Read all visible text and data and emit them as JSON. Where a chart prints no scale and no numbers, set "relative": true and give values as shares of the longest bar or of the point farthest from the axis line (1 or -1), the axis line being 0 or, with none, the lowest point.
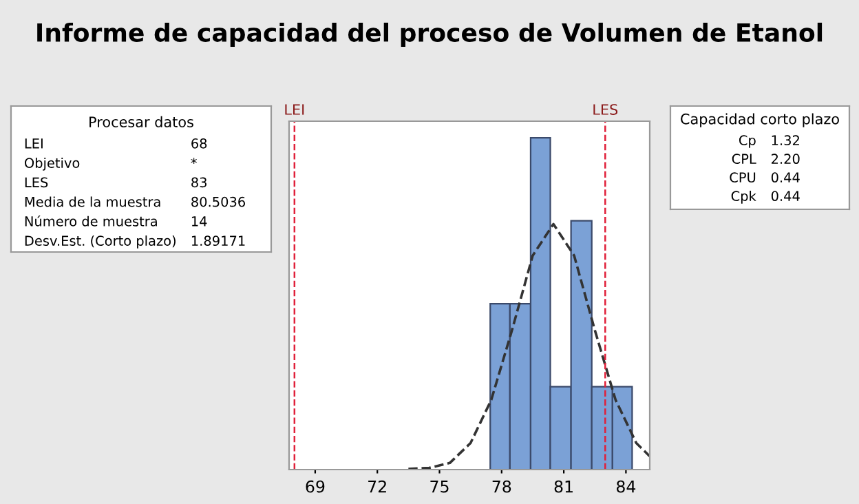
{
  "chart_data": [
    {
      "type": "other",
      "title": "Procesar datos",
      "annotations": [
        "LEI",
        "68",
        "Objetivo",
        "*",
        "LES",
        "83",
        "Media de la muestra",
        "80.5036",
        "Número de muestra",
        "14",
        "Desv.Est. (Corto plazo)",
        "1.89171"
      ]
    },
    {
      "type": "histogram",
      "title": "Informe de capacidad del proceso de Volumen de Etanol",
      "relative": true,
      "xlim": [
        67.74,
        85.15
      ],
      "xticks": [
        69,
        72,
        75,
        78,
        81,
        84
      ],
      "series": [
        {
          "type": "histogram",
          "color": "#7ba1d6",
          "bins": [
            77.45,
            78.4,
            79.4,
            80.35,
            81.35,
            82.35,
            83.35,
            84.3
          ],
          "values": [
            0.5,
            0.5,
            1,
            0.25,
            0.75,
            0.25,
            0.25
          ]
        },
        {
          "type": "line",
          "color": "#333333",
          "line_style": "dashed",
          "x": [
            73.5,
            74.5,
            75.5,
            76.5,
            77.5,
            78.5,
            79.5,
            80.5,
            81.5,
            82.5,
            83.5,
            84.5,
            85.15
          ],
          "values": [
            0.002,
            0.005,
            0.02,
            0.08,
            0.21,
            0.42,
            0.645,
            0.74,
            0.645,
            0.42,
            0.21,
            0.08,
            0.04
          ]
        }
      ],
      "ref_lines": [
        {
          "axis": "x",
          "value": 68,
          "label": "LEI",
          "color": "#e0203a",
          "line_style": "dashed"
        },
        {
          "axis": "x",
          "value": 83,
          "label": "LES",
          "color": "#e0203a",
          "line_style": "dashed"
        }
      ]
    },
    {
      "type": "other",
      "title": "Capacidad corto plazo",
      "annotations": [
        "Cp",
        "1.32",
        "CPL",
        "2.20",
        "CPU",
        "0.44",
        "Cpk",
        "0.44"
      ]
    }
  ]
}
